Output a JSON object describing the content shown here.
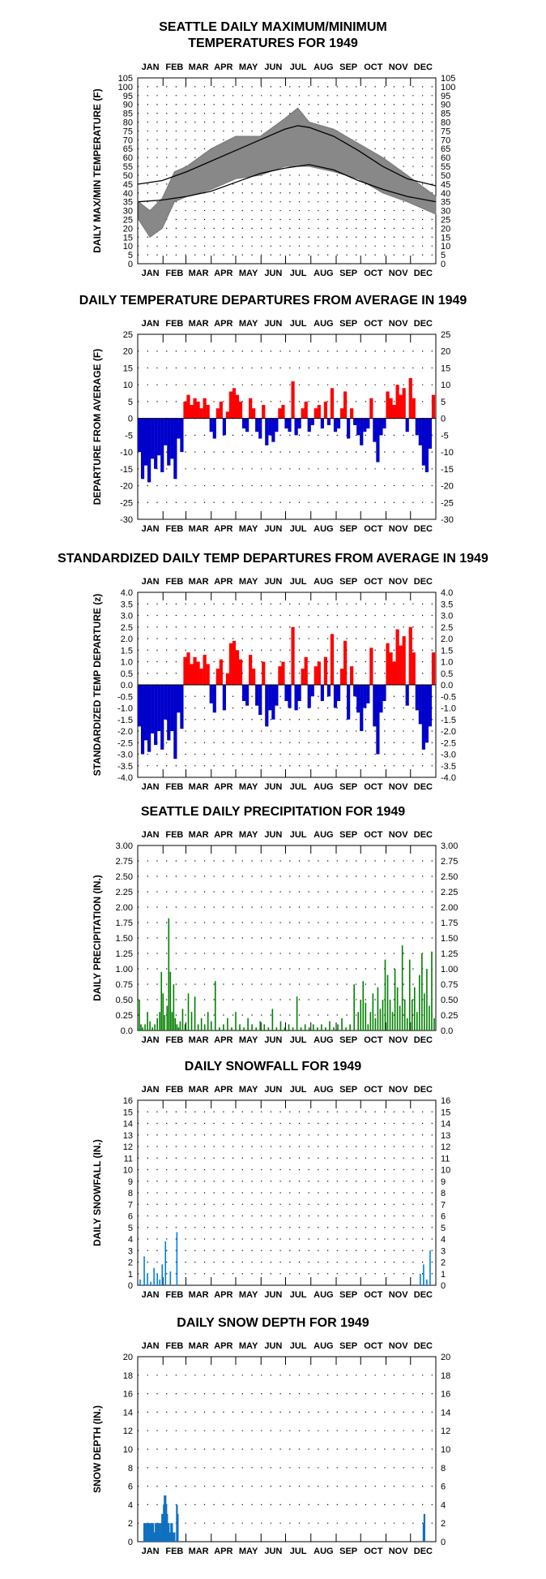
{
  "months": [
    "JAN",
    "FEB",
    "MAR",
    "APR",
    "MAY",
    "JUN",
    "JUL",
    "AUG",
    "SEP",
    "OCT",
    "NOV",
    "DEC"
  ],
  "chart_data": [
    {
      "id": "temps",
      "type": "area",
      "title_lines": [
        "SEATTLE DAILY MAXIMUM/MINIMUM",
        "TEMPERATURES FOR 1949"
      ],
      "ylabel": "DAILY MAX/MIN TEMPERATURE (F)",
      "ylim": [
        0,
        105
      ],
      "yticks": [
        0,
        5,
        10,
        15,
        20,
        25,
        30,
        35,
        40,
        45,
        50,
        55,
        60,
        65,
        70,
        75,
        80,
        85,
        90,
        95,
        100,
        105
      ],
      "grid": true,
      "series": [
        {
          "name": "",
          "color": "#808080",
          "values_note": ""
        }
      ],
      "normal_high": {
        "x": [
          1,
          30,
          60,
          90,
          120,
          150,
          180,
          196,
          210,
          240,
          270,
          300,
          330,
          365
        ],
        "values": [
          45,
          47,
          52,
          58,
          64,
          70,
          76,
          78,
          77,
          72,
          64,
          55,
          48,
          44
        ]
      },
      "normal_low": {
        "x": [
          1,
          30,
          60,
          90,
          120,
          150,
          180,
          210,
          240,
          270,
          300,
          330,
          365
        ],
        "values": [
          35,
          36,
          38,
          41,
          46,
          51,
          54,
          56,
          53,
          47,
          42,
          38,
          35
        ]
      },
      "observed_high": {
        "x": [
          1,
          15,
          30,
          45,
          60,
          90,
          120,
          150,
          180,
          196,
          210,
          240,
          270,
          300,
          330,
          365
        ],
        "values": [
          35,
          30,
          37,
          52,
          55,
          65,
          72,
          72,
          82,
          88,
          80,
          76,
          68,
          60,
          50,
          38
        ]
      },
      "observed_low": {
        "x": [
          1,
          15,
          30,
          45,
          60,
          90,
          120,
          150,
          180,
          210,
          240,
          270,
          300,
          330,
          365
        ],
        "values": [
          25,
          15,
          20,
          35,
          38,
          42,
          48,
          50,
          55,
          55,
          52,
          48,
          40,
          35,
          28
        ]
      }
    },
    {
      "id": "departures",
      "type": "bar",
      "title_lines": [
        "DAILY TEMPERATURE DEPARTURES FROM AVERAGE IN 1949"
      ],
      "ylabel": "DEPARTURE FROM AVERAGE (F)",
      "ylim": [
        -30,
        25
      ],
      "yticks": [
        -30,
        -25,
        -20,
        -15,
        -10,
        -5,
        0,
        5,
        10,
        15,
        20,
        25
      ],
      "grid": true,
      "positive_color": "#ff0000",
      "negative_color": "#0000cc",
      "x": [
        2,
        6,
        10,
        14,
        18,
        22,
        26,
        30,
        34,
        38,
        42,
        46,
        50,
        54,
        58,
        62,
        66,
        70,
        74,
        78,
        82,
        86,
        90,
        94,
        98,
        102,
        106,
        110,
        114,
        118,
        122,
        126,
        130,
        134,
        138,
        142,
        146,
        150,
        154,
        158,
        162,
        166,
        170,
        174,
        178,
        182,
        186,
        190,
        194,
        198,
        202,
        206,
        210,
        214,
        218,
        222,
        226,
        230,
        234,
        238,
        242,
        246,
        250,
        254,
        258,
        262,
        266,
        270,
        274,
        278,
        282,
        286,
        290,
        294,
        298,
        302,
        306,
        310,
        314,
        318,
        322,
        326,
        330,
        334,
        338,
        342,
        346,
        350,
        354,
        358,
        362
      ],
      "values": [
        -10,
        -18,
        -14,
        -19,
        -12,
        -15,
        -11,
        -16,
        -8,
        -14,
        -12,
        -18,
        -6,
        -10,
        5,
        7,
        4,
        6,
        5,
        3,
        6,
        4,
        -4,
        -6,
        3,
        5,
        -5,
        2,
        8,
        9,
        7,
        5,
        -3,
        -4,
        6,
        3,
        -4,
        -6,
        4,
        -8,
        -5,
        -7,
        -4,
        3,
        4,
        -3,
        -4,
        11,
        -5,
        -3,
        3,
        5,
        -4,
        -2,
        3,
        4,
        -3,
        5,
        -2,
        9,
        -4,
        -3,
        3,
        8,
        -6,
        3,
        -2,
        -5,
        -8,
        -4,
        -3,
        6,
        -7,
        -13,
        -5,
        -3,
        8,
        6,
        4,
        10,
        7,
        9,
        -4,
        12,
        6,
        -5,
        -8,
        -14,
        -16,
        -9,
        7
      ],
      "x_labeled": [],
      "values_labeled": []
    },
    {
      "id": "standardized",
      "type": "bar",
      "title_lines": [
        "STANDARDIZED DAILY TEMP DEPARTURES FROM AVERAGE IN 1949"
      ],
      "ylabel": "STANDARDIZED TEMP DEPARTURE (z)",
      "ylim": [
        -4.0,
        4.0
      ],
      "yticks": [
        -4.0,
        -3.5,
        -3.0,
        -2.5,
        -2.0,
        -1.5,
        -1.0,
        -0.5,
        0.0,
        0.5,
        1.0,
        1.5,
        2.0,
        2.5,
        3.0,
        3.5,
        4.0
      ],
      "ytick_labels": [
        "-4.0",
        "-3.5",
        "-3.0",
        "-2.5",
        "-2.0",
        "-1.5",
        "-1.0",
        "-0.5",
        "0.0",
        "0.5",
        "1.0",
        "1.5",
        "2.0",
        "2.5",
        "3.0",
        "3.5",
        "4.0"
      ],
      "grid": true,
      "positive_color": "#ff0000",
      "negative_color": "#0000cc",
      "x": [
        2,
        6,
        10,
        14,
        18,
        22,
        26,
        30,
        34,
        38,
        42,
        46,
        50,
        54,
        58,
        62,
        66,
        70,
        74,
        78,
        82,
        86,
        90,
        94,
        98,
        102,
        106,
        110,
        114,
        118,
        122,
        126,
        130,
        134,
        138,
        142,
        146,
        150,
        154,
        158,
        162,
        166,
        170,
        174,
        178,
        182,
        186,
        190,
        194,
        198,
        202,
        206,
        210,
        214,
        218,
        222,
        226,
        230,
        234,
        238,
        242,
        246,
        250,
        254,
        258,
        262,
        266,
        270,
        274,
        278,
        282,
        286,
        290,
        294,
        298,
        302,
        306,
        310,
        314,
        318,
        322,
        326,
        330,
        334,
        338,
        342,
        346,
        350,
        354,
        358,
        362
      ],
      "values": [
        -1.8,
        -3.0,
        -2.4,
        -2.9,
        -2.1,
        -2.6,
        -2.0,
        -2.8,
        -1.5,
        -2.4,
        -2.0,
        -3.2,
        -1.2,
        -1.9,
        1.2,
        1.4,
        0.9,
        1.2,
        1.0,
        0.7,
        1.3,
        0.9,
        -0.8,
        -1.2,
        0.7,
        1.1,
        -1.1,
        0.5,
        1.8,
        1.9,
        1.5,
        1.1,
        -0.7,
        -0.9,
        1.3,
        0.7,
        -0.9,
        -1.3,
        1.0,
        -1.8,
        -1.1,
        -1.5,
        -0.9,
        0.8,
        1.0,
        -0.7,
        -1.0,
        2.5,
        -1.1,
        -0.7,
        0.7,
        1.2,
        -1.0,
        -0.5,
        0.8,
        1.0,
        -0.7,
        1.2,
        -0.5,
        2.2,
        -1.0,
        -0.7,
        0.7,
        1.9,
        -1.5,
        0.8,
        -0.5,
        -1.2,
        -2.0,
        -1.0,
        -0.8,
        1.6,
        -1.8,
        -3.0,
        -1.2,
        -0.7,
        1.8,
        1.4,
        1.0,
        2.4,
        1.7,
        2.1,
        -0.9,
        2.5,
        1.4,
        -1.1,
        -1.7,
        -2.8,
        -2.5,
        -1.8,
        1.4
      ]
    },
    {
      "id": "precip",
      "type": "bar",
      "title_lines": [
        "SEATTLE DAILY PRECIPITATION FOR 1949"
      ],
      "ylabel": "DAILY PRECIPITATION (IN.)",
      "ylim": [
        0,
        3.0
      ],
      "yticks": [
        0,
        0.25,
        0.5,
        0.75,
        1.0,
        1.25,
        1.5,
        1.75,
        2.0,
        2.25,
        2.5,
        2.75,
        3.0
      ],
      "ytick_labels": [
        "0.0",
        "0.25",
        "0.50",
        "0.75",
        "1.00",
        "1.25",
        "1.50",
        "1.75",
        "2.00",
        "2.25",
        "2.50",
        "2.75",
        "3.00"
      ],
      "grid": true,
      "color": "#008000",
      "x": [
        2,
        4,
        6,
        9,
        12,
        15,
        18,
        21,
        24,
        27,
        29,
        31,
        33,
        36,
        38,
        40,
        42,
        44,
        46,
        48,
        50,
        52,
        55,
        58,
        62,
        66,
        70,
        74,
        78,
        82,
        86,
        90,
        95,
        100,
        105,
        110,
        115,
        120,
        125,
        130,
        135,
        140,
        145,
        150,
        155,
        160,
        165,
        170,
        175,
        180,
        185,
        190,
        195,
        200,
        205,
        210,
        215,
        220,
        225,
        230,
        235,
        240,
        245,
        250,
        255,
        260,
        265,
        270,
        273,
        276,
        279,
        282,
        285,
        288,
        291,
        294,
        297,
        300,
        303,
        306,
        309,
        312,
        315,
        318,
        321,
        324,
        327,
        330,
        333,
        336,
        339,
        342,
        345,
        348,
        351,
        354,
        357,
        360,
        363
      ],
      "values": [
        0.5,
        0.1,
        0.05,
        0.1,
        0.3,
        0.15,
        0.05,
        0.1,
        0.2,
        0.3,
        0.95,
        0.6,
        0.25,
        0.4,
        1.82,
        0.95,
        0.3,
        0.75,
        0.2,
        0.1,
        0.05,
        0.15,
        0.35,
        0.1,
        0.6,
        0.3,
        0.55,
        0.1,
        0.2,
        0.1,
        0.3,
        0.15,
        0.8,
        0.05,
        0.1,
        0.2,
        0.05,
        0.3,
        0.1,
        0.05,
        0.2,
        0.1,
        0.05,
        0.15,
        0.1,
        0.05,
        0.35,
        0.05,
        0.15,
        0.05,
        0.1,
        0.05,
        0.55,
        0.05,
        0.1,
        0.05,
        0.1,
        0.05,
        0.1,
        0.05,
        0.15,
        0.05,
        0.1,
        0.2,
        0.05,
        0.1,
        0.75,
        0.3,
        0.5,
        0.8,
        0.45,
        0.1,
        0.3,
        0.6,
        0.2,
        0.7,
        0.35,
        0.5,
        1.15,
        0.9,
        0.5,
        0.3,
        1.0,
        0.7,
        0.4,
        1.38,
        0.5,
        0.2,
        1.15,
        0.5,
        0.7,
        0.3,
        0.9,
        1.25,
        0.6,
        1.0,
        0.4,
        1.28,
        0.2
      ]
    },
    {
      "id": "snowfall",
      "type": "bar",
      "title_lines": [
        "DAILY SNOWFALL FOR 1949"
      ],
      "ylabel": "DAILY SNOWFALL (IN.)",
      "ylim": [
        0,
        16
      ],
      "yticks": [
        0,
        1,
        2,
        3,
        4,
        5,
        6,
        7,
        8,
        9,
        10,
        11,
        12,
        13,
        14,
        15,
        16
      ],
      "grid": true,
      "color": "#0080e0",
      "x": [
        3,
        8,
        12,
        16,
        20,
        24,
        27,
        30,
        34,
        40,
        48,
        346,
        350,
        354,
        358
      ],
      "values": [
        0.5,
        2.5,
        1.0,
        0.3,
        1.5,
        1.0,
        0.5,
        1.8,
        3.8,
        1.2,
        4.6,
        1.0,
        1.8,
        0.5,
        3.0
      ]
    },
    {
      "id": "snowdepth",
      "type": "bar",
      "title_lines": [
        "DAILY SNOW DEPTH FOR 1949"
      ],
      "ylabel": "SNOW DEPTH (IN.)",
      "ylim": [
        0,
        20
      ],
      "yticks": [
        0,
        2,
        4,
        6,
        8,
        10,
        12,
        14,
        16,
        18,
        20
      ],
      "grid": true,
      "color": "#1070c0",
      "x": [
        8,
        9,
        10,
        11,
        12,
        13,
        14,
        15,
        16,
        17,
        18,
        19,
        20,
        21,
        22,
        23,
        24,
        25,
        26,
        27,
        28,
        29,
        30,
        31,
        32,
        33,
        34,
        35,
        36,
        37,
        38,
        39,
        40,
        41,
        42,
        43,
        44,
        45,
        48,
        49,
        350,
        351
      ],
      "values": [
        2,
        2,
        2,
        1,
        2,
        2,
        2,
        1,
        2,
        2,
        2,
        2,
        1,
        1,
        2,
        1,
        2,
        2,
        2,
        1,
        2,
        2,
        3,
        3,
        4,
        5,
        5,
        4,
        3,
        2,
        2,
        1,
        1,
        2,
        2,
        1,
        1,
        1,
        4,
        3,
        2,
        3
      ]
    }
  ]
}
